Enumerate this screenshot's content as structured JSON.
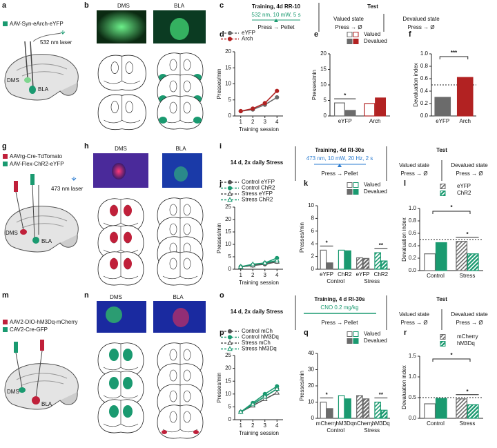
{
  "figure": {
    "a": {
      "letter": "a",
      "viruses": [
        "AAV-Syn-eArch-eYFP"
      ],
      "laser": "532 nm laser",
      "regions": [
        "DMS",
        "BLA"
      ]
    },
    "b": {
      "letter": "b",
      "images": [
        "DMS",
        "BLA"
      ]
    },
    "c": {
      "letter": "c",
      "training": [
        "Training, 4d RR-10",
        "532 nm, 10 mW, 5 s",
        "Press → Pellet"
      ],
      "test": "Test",
      "valued": [
        "Valued state",
        "Press → Ø"
      ],
      "devalued": [
        "Devalued state",
        "Press → Ø"
      ]
    },
    "g": {
      "letter": "g",
      "viruses": [
        "AAVrg-Cre-TdTomato",
        "AAV-Flex-ChR2-eYFP"
      ],
      "laser": "473 nm laser",
      "regions": [
        "DMS",
        "BLA"
      ]
    },
    "h": {
      "letter": "h",
      "images": [
        "DMS",
        "BLA"
      ]
    },
    "i": {
      "letter": "i",
      "stress": "14 d, 2x daily Stress",
      "training": [
        "Training, 4d RI-30s",
        "473 nm, 10 mW, 20 Hz, 2 s",
        "Press → Pellet"
      ],
      "test": "Test",
      "valued": [
        "Valued state",
        "Press → Ø"
      ],
      "devalued": [
        "Devalued state",
        "Press → Ø"
      ]
    },
    "m": {
      "letter": "m",
      "viruses": [
        "AAV2-DIO-hM3Dq-mCherry",
        "CAV2-Cre-GFP"
      ],
      "regions": [
        "DMS",
        "BLA"
      ]
    },
    "n": {
      "letter": "n",
      "images": [
        "DMS",
        "BLA"
      ]
    },
    "o": {
      "letter": "o",
      "stress": "14 d, 2x daily Stress",
      "training": [
        "Training, 4 d RI-30s",
        "CNO 0.2 mg/kg",
        "Press → Pellet"
      ],
      "test": "Test",
      "valued": [
        "Valued state",
        "Press → Ø"
      ],
      "devalued": [
        "Devalued state",
        "Press → Ø"
      ]
    }
  },
  "chart_data": [
    {
      "type": "line",
      "label": "d",
      "y_label": "Presses/min",
      "x_label": "Training session",
      "categories": [
        "1",
        "2",
        "3",
        "4"
      ],
      "ylim": [
        0,
        20
      ],
      "yticks": [
        0,
        5,
        10,
        15,
        20
      ],
      "series": [
        {
          "name": "eYFP",
          "color": "#6b6b6b",
          "marker": "circle",
          "filled": true,
          "values": [
            1.5,
            2,
            3.5,
            5.8
          ]
        },
        {
          "name": "Arch",
          "color": "#b22222",
          "marker": "circle",
          "filled": true,
          "values": [
            1.5,
            2.3,
            4,
            7.8
          ]
        }
      ]
    },
    {
      "type": "bar",
      "label": "e",
      "y_label": "Presses/min",
      "categories": [
        "eYFP",
        "Arch"
      ],
      "ylim": [
        0,
        20
      ],
      "yticks": [
        0,
        5,
        10,
        15,
        20
      ],
      "category_colors": [
        "#6b6b6b",
        "#b22222"
      ],
      "significance": [
        "*",
        null
      ],
      "series": [
        {
          "name": "Valued",
          "style": "open",
          "values": [
            4.2,
            4
          ]
        },
        {
          "name": "Devalued",
          "style": "filled",
          "values": [
            1.8,
            5.8
          ]
        }
      ]
    },
    {
      "type": "bar",
      "label": "f",
      "y_label": "Devaluation index",
      "categories": [
        "eYFP",
        "Arch"
      ],
      "ylim": [
        0,
        1
      ],
      "yticks": [
        {
          "value": 0,
          "label": "0.0"
        },
        0.2,
        0.4,
        0.6,
        0.8,
        {
          "value": 1,
          "label": "1.0"
        }
      ],
      "reference_line": 0.5,
      "comparison": "***",
      "series": [
        {
          "style": "filled",
          "colors": [
            "#6b6b6b",
            "#b22222"
          ],
          "values": [
            0.3,
            0.62
          ]
        }
      ]
    },
    {
      "type": "line",
      "label": "j",
      "y_label": "Presses/min",
      "x_label": "Training session",
      "categories": [
        "1",
        "2",
        "3",
        "4"
      ],
      "ylim": [
        0,
        25
      ],
      "yticks": [
        0,
        5,
        10,
        15,
        20,
        25
      ],
      "series": [
        {
          "name": "Control eYFP",
          "color": "#555555",
          "marker": "circle",
          "filled": true,
          "values": [
            1,
            1.5,
            2,
            3
          ]
        },
        {
          "name": "Control ChR2",
          "color": "#1a9a70",
          "marker": "circle",
          "filled": true,
          "values": [
            1,
            1.8,
            2.5,
            4.5
          ]
        },
        {
          "name": "Stress eYFP",
          "color": "#555555",
          "marker": "triangle",
          "filled": false,
          "values": [
            1,
            1.5,
            2.5,
            3
          ]
        },
        {
          "name": "Stress ChR2",
          "color": "#1a9a70",
          "marker": "triangle",
          "filled": false,
          "values": [
            1,
            2,
            2.5,
            3.5
          ]
        }
      ]
    },
    {
      "type": "bar",
      "label": "k",
      "y_label": "Presses/min",
      "categories": [
        "eYFP",
        "ChR2",
        "eYFP",
        "ChR2"
      ],
      "groups": [
        "Control",
        "Stress"
      ],
      "ylim": [
        0,
        10
      ],
      "yticks": [
        0,
        2,
        4,
        6,
        8,
        10
      ],
      "category_colors": [
        "#6b6b6b",
        "#1a9a70",
        "#6b6b6b",
        "#1a9a70"
      ],
      "category_hatch": [
        false,
        false,
        true,
        true
      ],
      "significance": [
        "*",
        null,
        null,
        "**"
      ],
      "series": [
        {
          "name": "Valued",
          "style": "open",
          "values": [
            3,
            3,
            1.8,
            2.6
          ]
        },
        {
          "name": "Devalued",
          "style": "filled",
          "values": [
            1,
            2.9,
            1.7,
            1.3
          ]
        }
      ]
    },
    {
      "type": "bar",
      "label": "l",
      "y_label": "Devaluation index",
      "categories": [
        "Control",
        "Stress"
      ],
      "ylim": [
        0,
        1
      ],
      "yticks": [
        {
          "value": 0,
          "label": "0.0"
        },
        0.2,
        0.4,
        0.6,
        0.8,
        {
          "value": 1,
          "label": "1.0"
        }
      ],
      "category_hatch": [
        false,
        true
      ],
      "reference_line": 0.5,
      "comparison": "*",
      "significance": [
        null,
        "*"
      ],
      "series": [
        {
          "name": "eYFP",
          "color": "#6b6b6b",
          "style": "open",
          "values": [
            0.27,
            0.47
          ]
        },
        {
          "name": "ChR2",
          "color": "#1a9a70",
          "style": "filled",
          "values": [
            0.45,
            0.27
          ]
        }
      ]
    },
    {
      "type": "line",
      "label": "p",
      "y_label": "Presses/min",
      "x_label": "Training session",
      "categories": [
        "1",
        "2",
        "3",
        "4"
      ],
      "ylim": [
        0,
        25
      ],
      "yticks": [
        0,
        5,
        10,
        15,
        20,
        25
      ],
      "series": [
        {
          "name": "Control mCh",
          "color": "#555555",
          "marker": "circle",
          "filled": true,
          "values": [
            3,
            6,
            9,
            12
          ]
        },
        {
          "name": "Control hM3Dq",
          "color": "#1a9a70",
          "marker": "circle",
          "filled": true,
          "values": [
            3,
            6.5,
            10,
            13
          ]
        },
        {
          "name": "Stress mCh",
          "color": "#555555",
          "marker": "triangle",
          "filled": false,
          "values": [
            3,
            5.5,
            8,
            10.5
          ]
        },
        {
          "name": "Stress hM3Dq",
          "color": "#1a9a70",
          "marker": "triangle",
          "filled": false,
          "values": [
            3,
            6,
            9,
            12
          ]
        }
      ]
    },
    {
      "type": "bar",
      "label": "q",
      "y_label": "Presses/min",
      "categories": [
        "mCherry",
        "hM3Dq",
        "mCherry",
        "hM3Dq"
      ],
      "groups": [
        "Control",
        "Stress"
      ],
      "ylim": [
        0,
        40
      ],
      "yticks": [
        0,
        10,
        20,
        30,
        40
      ],
      "category_colors": [
        "#6b6b6b",
        "#1a9a70",
        "#6b6b6b",
        "#1a9a70"
      ],
      "category_hatch": [
        false,
        false,
        true,
        true
      ],
      "significance": [
        "*",
        null,
        null,
        "**"
      ],
      "series": [
        {
          "name": "Valued",
          "style": "open",
          "values": [
            10,
            14,
            14,
            10
          ]
        },
        {
          "name": "Devalued",
          "style": "filled",
          "values": [
            6,
            12,
            12,
            5
          ]
        }
      ]
    },
    {
      "type": "bar",
      "label": "r",
      "y_label": "Devaluation index",
      "categories": [
        "Control",
        "Stress"
      ],
      "ylim": [
        0,
        1.5
      ],
      "yticks": [
        {
          "value": 0,
          "label": "0.0"
        },
        0.5,
        {
          "value": 1,
          "label": "1.0"
        },
        1.5
      ],
      "category_hatch": [
        false,
        true
      ],
      "reference_line": 0.5,
      "comparison": "*",
      "significance": [
        null,
        "*"
      ],
      "series": [
        {
          "name": "mCherry",
          "color": "#6b6b6b",
          "style": "open",
          "values": [
            0.35,
            0.47
          ]
        },
        {
          "name": "hM3Dq",
          "color": "#1a9a70",
          "style": "filled",
          "values": [
            0.48,
            0.33
          ]
        }
      ]
    }
  ]
}
